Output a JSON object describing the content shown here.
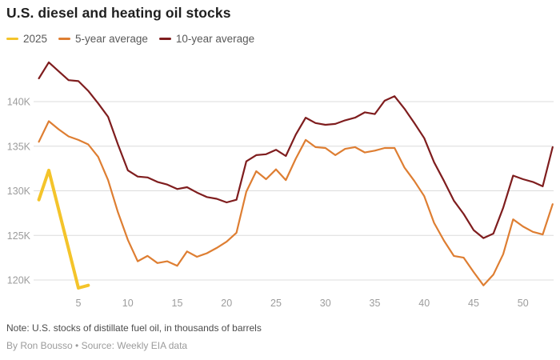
{
  "chart_data": {
    "type": "line",
    "title": "U.S. diesel and heating oil stocks",
    "note": "Note: U.S. stocks of distillate fuel oil, in thousands of barrels",
    "byline": "By Ron Bousso • Source: Weekly EIA data",
    "x_axis_meaning": "week of year",
    "x_ticks": [
      5,
      10,
      15,
      20,
      25,
      30,
      35,
      40,
      45,
      50
    ],
    "y_ticks": [
      {
        "value": 120,
        "label": "120K"
      },
      {
        "value": 125,
        "label": "125K"
      },
      {
        "value": 130,
        "label": "130K"
      },
      {
        "value": 135,
        "label": "135K"
      },
      {
        "value": 140,
        "label": "140K"
      }
    ],
    "values_unit": "K",
    "xlim": [
      1,
      53
    ],
    "ylim": [
      118,
      146
    ],
    "grid": true,
    "legend_position": "top-left",
    "colors": {
      "accent_2025": "#F4C42A",
      "five_year": "#DE7E32",
      "ten_year": "#7F1D1E",
      "gridline": "#dcdcdc",
      "tick_text": "#9c9c9c"
    },
    "series": [
      {
        "name": "2025",
        "color": "#F4C42A",
        "stroke_width": 4,
        "x_start": 1,
        "values": [
          129.0,
          132.3,
          127.9,
          123.5,
          119.1,
          119.4
        ]
      },
      {
        "name": "5-year average",
        "color": "#DE7E32",
        "stroke_width": 2.2,
        "x_start": 1,
        "values": [
          135.5,
          137.8,
          136.9,
          136.1,
          135.7,
          135.2,
          133.8,
          131.2,
          127.6,
          124.5,
          122.1,
          122.7,
          121.9,
          122.1,
          121.6,
          123.2,
          122.6,
          123.0,
          123.6,
          124.3,
          125.3,
          129.9,
          132.2,
          131.3,
          132.4,
          131.2,
          133.6,
          135.7,
          134.9,
          134.8,
          134.0,
          134.7,
          134.9,
          134.3,
          134.5,
          134.8,
          134.8,
          132.6,
          131.1,
          129.4,
          126.4,
          124.4,
          122.7,
          122.5,
          120.9,
          119.4,
          120.6,
          122.9,
          126.8,
          126.0,
          125.4,
          125.1,
          128.5
        ]
      },
      {
        "name": "10-year average",
        "color": "#7F1D1E",
        "stroke_width": 2.2,
        "x_start": 1,
        "values": [
          142.6,
          144.4,
          143.4,
          142.4,
          142.3,
          141.2,
          139.8,
          138.3,
          135.2,
          132.3,
          131.6,
          131.5,
          131.0,
          130.7,
          130.2,
          130.4,
          129.8,
          129.3,
          129.1,
          128.7,
          129.0,
          133.3,
          134.0,
          134.1,
          134.6,
          133.9,
          136.3,
          138.2,
          137.6,
          137.4,
          137.5,
          137.9,
          138.2,
          138.8,
          138.6,
          140.1,
          140.6,
          139.2,
          137.6,
          135.9,
          133.2,
          131.1,
          128.9,
          127.4,
          125.6,
          124.7,
          125.2,
          128.1,
          131.7,
          131.3,
          131.0,
          130.5,
          134.9
        ]
      }
    ]
  }
}
